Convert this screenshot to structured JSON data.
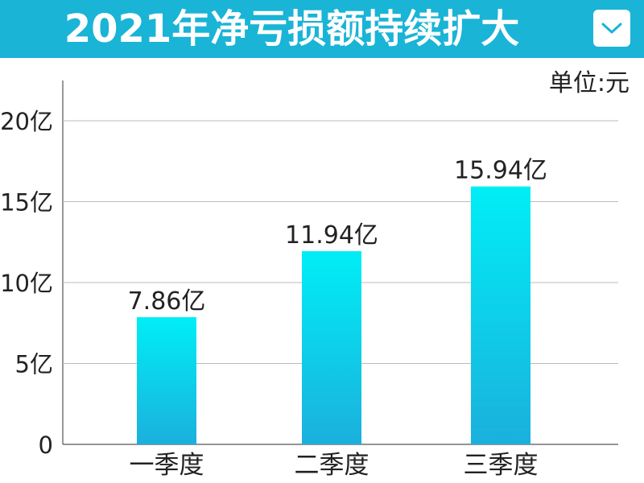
{
  "header": {
    "title": "2021年净亏损额持续扩大",
    "dropdown_icon": "chevron-down-icon",
    "background": "#19b4d6"
  },
  "unit_label": "单位:元",
  "chart_data": {
    "type": "bar",
    "title": "2021年净亏损额持续扩大",
    "unit": "单位:元",
    "categories": [
      "一季度",
      "二季度",
      "三季度"
    ],
    "values": [
      7.86,
      11.94,
      15.94
    ],
    "data_labels": [
      "7.86亿",
      "11.94亿",
      "15.94亿"
    ],
    "y_ticks": [
      {
        "value": 0,
        "label": "0"
      },
      {
        "value": 5,
        "label": "5亿"
      },
      {
        "value": 10,
        "label": "10亿"
      },
      {
        "value": 15,
        "label": "15亿"
      },
      {
        "value": 20,
        "label": "20亿"
      }
    ],
    "ylim": [
      0,
      22
    ],
    "grid": true,
    "legend": "none",
    "bar_gradient": [
      "#00eef6",
      "#1bb0dc"
    ]
  }
}
